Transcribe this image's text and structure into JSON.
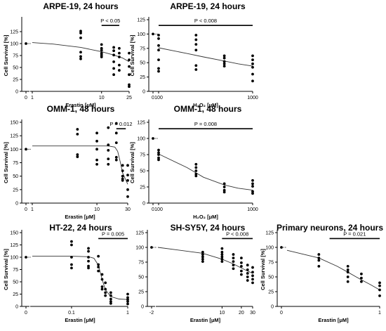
{
  "chart_data": [
    {
      "type": "scatter",
      "title": "ARPE-19, 24 hours",
      "xlabel": "Erastin [μM]",
      "ylabel": "Cell Survival [%]",
      "xscale": "log",
      "control_tick": "0",
      "xticks": [
        "1",
        "10",
        "25"
      ],
      "xtick_values": [
        1,
        10,
        25
      ],
      "ylim": [
        0,
        150
      ],
      "yticks": [
        "0",
        "25",
        "50",
        "75",
        "100",
        "125"
      ],
      "annotation": {
        "text": "P < 0.05",
        "x_from": 10,
        "x_to": 18
      },
      "control_points": [
        100
      ],
      "points": [
        {
          "x": 5,
          "y": [
            126,
            122,
            112,
            82,
            73,
            68
          ]
        },
        {
          "x": 10,
          "y": [
            98,
            90,
            86,
            80,
            76,
            72
          ]
        },
        {
          "x": 15,
          "y": [
            92,
            85,
            76,
            62,
            48,
            35
          ]
        },
        {
          "x": 18,
          "y": [
            90,
            80,
            72,
            55,
            44
          ]
        },
        {
          "x": 25,
          "y": [
            80,
            66,
            52,
            35,
            14,
            10
          ]
        }
      ],
      "curve": {
        "x": [
          0.8,
          2,
          5,
          10,
          15,
          20,
          25
        ],
        "y": [
          102,
          99,
          92,
          83,
          76,
          70,
          62
        ]
      }
    },
    {
      "type": "scatter",
      "title": "ARPE-19, 24 hours",
      "xlabel": "H₂O₂ [μM]",
      "ylabel": "Cell Survival [%]",
      "xscale": "log",
      "control_tick": "0",
      "xticks": [
        "100",
        "1000"
      ],
      "xtick_values": [
        100,
        1000
      ],
      "ylim": [
        0,
        125
      ],
      "yticks": [
        "0",
        "25",
        "50",
        "75",
        "100",
        "125"
      ],
      "annotation": {
        "text": "P < 0.008",
        "x_from": 100,
        "x_to": 1000
      },
      "control_points": [
        100
      ],
      "points": [
        {
          "x": 100,
          "y": [
            98,
            92,
            80,
            72,
            55,
            40,
            35
          ]
        },
        {
          "x": 250,
          "y": [
            98,
            90,
            82,
            72,
            45,
            38
          ]
        },
        {
          "x": 500,
          "y": [
            62,
            58,
            52,
            48,
            44
          ]
        },
        {
          "x": 1000,
          "y": [
            62,
            55,
            48,
            42,
            30,
            18
          ]
        }
      ],
      "curve": {
        "x": [
          100,
          200,
          300,
          500,
          700,
          1000
        ],
        "y": [
          76,
          66,
          60,
          53,
          48,
          44
        ]
      }
    },
    {
      "type": "scatter",
      "title": "OMM-1, 48 hours",
      "xlabel": "Erastin [μM]",
      "ylabel": "Cell Survival [%]",
      "xscale": "log",
      "control_tick": "0",
      "xticks": [
        "1",
        "10",
        "30"
      ],
      "xtick_values": [
        1,
        10,
        30
      ],
      "ylim": [
        0,
        150
      ],
      "yticks": [
        "0",
        "25",
        "50",
        "75",
        "100",
        "125",
        "150"
      ],
      "annotation": {
        "text": "P = 0.012",
        "x_from": 20,
        "x_to": 28
      },
      "control_points": [
        100
      ],
      "points": [
        {
          "x": 5,
          "y": [
            137,
            128,
            90,
            86
          ]
        },
        {
          "x": 10,
          "y": [
            130,
            115,
            100,
            80,
            72
          ]
        },
        {
          "x": 15,
          "y": [
            140,
            108,
            98,
            82,
            72
          ]
        },
        {
          "x": 20,
          "y": [
            148,
            130,
            112,
            85,
            80
          ]
        },
        {
          "x": 25,
          "y": [
            70,
            60,
            50,
            45,
            42
          ]
        },
        {
          "x": 30,
          "y": [
            70,
            52,
            42,
            25,
            12
          ]
        }
      ],
      "curve": {
        "x": [
          0.8,
          5,
          15,
          19,
          21,
          23,
          25,
          30
        ],
        "y": [
          106,
          106,
          106,
          104,
          96,
          76,
          56,
          35
        ]
      }
    },
    {
      "type": "scatter",
      "title": "OMM-1, 48 hours",
      "xlabel": "H₂O₂ [μM]",
      "ylabel": "Cell Survival [%]",
      "xscale": "log",
      "control_tick": "0",
      "xticks": [
        "100",
        "1000"
      ],
      "xtick_values": [
        100,
        1000
      ],
      "ylim": [
        0,
        125
      ],
      "yticks": [
        "0",
        "25",
        "50",
        "75",
        "100",
        "125"
      ],
      "annotation": {
        "text": "P = 0.008",
        "x_from": 100,
        "x_to": 1000
      },
      "control_points": [
        100
      ],
      "points": [
        {
          "x": 100,
          "y": [
            82,
            78,
            75,
            70,
            67
          ]
        },
        {
          "x": 250,
          "y": [
            60,
            55,
            50,
            45,
            42
          ]
        },
        {
          "x": 500,
          "y": [
            30,
            25,
            20,
            17
          ]
        },
        {
          "x": 1000,
          "y": [
            35,
            30,
            26,
            18,
            15
          ]
        }
      ],
      "curve": {
        "x": [
          100,
          200,
          300,
          500,
          700,
          1000
        ],
        "y": [
          76,
          55,
          40,
          28,
          23,
          20
        ]
      }
    },
    {
      "type": "scatter",
      "title": "HT-22, 24 hours",
      "xlabel": "Erastin [μM]",
      "ylabel": "Cell Survival [%]",
      "xscale": "log",
      "control_tick": "0",
      "xticks": [
        "0.1",
        "1"
      ],
      "xtick_values": [
        0.1,
        1
      ],
      "ylim": [
        0,
        150
      ],
      "yticks": [
        "0",
        "25",
        "50",
        "75",
        "100",
        "125",
        "150"
      ],
      "annotation": {
        "text": "P = 0.005",
        "x_from": 0.3,
        "x_to": 1
      },
      "control_points": [
        100
      ],
      "points": [
        {
          "x": 0.1,
          "y": [
            132,
            125,
            100,
            85,
            78
          ]
        },
        {
          "x": 0.2,
          "y": [
            118,
            112,
            100,
            92,
            82,
            78
          ]
        },
        {
          "x": 0.3,
          "y": [
            102,
            85,
            80,
            72
          ]
        },
        {
          "x": 0.35,
          "y": [
            65,
            55,
            40,
            35
          ]
        },
        {
          "x": 0.4,
          "y": [
            48,
            35,
            28,
            22
          ]
        },
        {
          "x": 0.5,
          "y": [
            28,
            22,
            15,
            10,
            6
          ]
        },
        {
          "x": 1,
          "y": [
            25,
            18,
            14,
            10,
            5
          ]
        }
      ],
      "curve": {
        "x": [
          0.02,
          0.1,
          0.2,
          0.25,
          0.3,
          0.35,
          0.4,
          0.5,
          0.7,
          1
        ],
        "y": [
          102,
          102,
          101,
          98,
          84,
          55,
          34,
          20,
          15,
          14
        ]
      }
    },
    {
      "type": "scatter",
      "title": "SH-SY5Y, 24 hours",
      "xlabel": "Erastin [μM]",
      "ylabel": "",
      "xscale": "log",
      "control_tick": "-2",
      "xticks": [
        "10",
        "20",
        "30"
      ],
      "xtick_values": [
        10,
        20,
        30
      ],
      "ylim": [
        0,
        125
      ],
      "yticks": [
        "0",
        "25",
        "50",
        "75",
        "100",
        "125"
      ],
      "annotation": {
        "text": "P < 0.008",
        "x_from": 10,
        "x_to": 30
      },
      "control_points": [
        100
      ],
      "points": [
        {
          "x": 5,
          "y": [
            92,
            88,
            84,
            80,
            76
          ]
        },
        {
          "x": 10,
          "y": [
            98,
            92,
            88,
            84,
            80,
            76
          ]
        },
        {
          "x": 15,
          "y": [
            88,
            82,
            76,
            70,
            64
          ]
        },
        {
          "x": 20,
          "y": [
            82,
            74,
            68,
            60,
            54
          ]
        },
        {
          "x": 25,
          "y": [
            70,
            62,
            56,
            50,
            44
          ]
        },
        {
          "x": 30,
          "y": [
            66,
            58,
            52,
            46,
            40
          ]
        }
      ],
      "curve": {
        "x": [
          1,
          5,
          10,
          15,
          20,
          25,
          30
        ],
        "y": [
          100,
          90,
          80,
          72,
          65,
          60,
          56
        ]
      }
    },
    {
      "type": "scatter",
      "title": "Primary neurons, 24 hours",
      "xlabel": "Erastin [μM]",
      "ylabel": "Cell Survival [%]",
      "xscale": "log",
      "control_tick": "0",
      "xticks": [
        "1"
      ],
      "xtick_values": [
        1
      ],
      "ylim": [
        0,
        125
      ],
      "yticks": [
        "0",
        "25",
        "50",
        "75",
        "100",
        "125"
      ],
      "annotation": {
        "text": "P = 0.021",
        "x_from": 0.15,
        "x_to": 1
      },
      "control_points": [
        100
      ],
      "points": [
        {
          "x": 0.1,
          "y": [
            88,
            82,
            78,
            68
          ]
        },
        {
          "x": 0.3,
          "y": [
            68,
            62,
            58,
            50,
            42
          ]
        },
        {
          "x": 0.5,
          "y": [
            55,
            48,
            42
          ]
        },
        {
          "x": 1,
          "y": [
            40,
            35,
            28,
            18
          ]
        }
      ],
      "curve": {
        "x": [
          0.03,
          0.1,
          0.2,
          0.3,
          0.5,
          0.7,
          1
        ],
        "y": [
          95,
          82,
          68,
          58,
          45,
          37,
          28
        ]
      }
    }
  ]
}
